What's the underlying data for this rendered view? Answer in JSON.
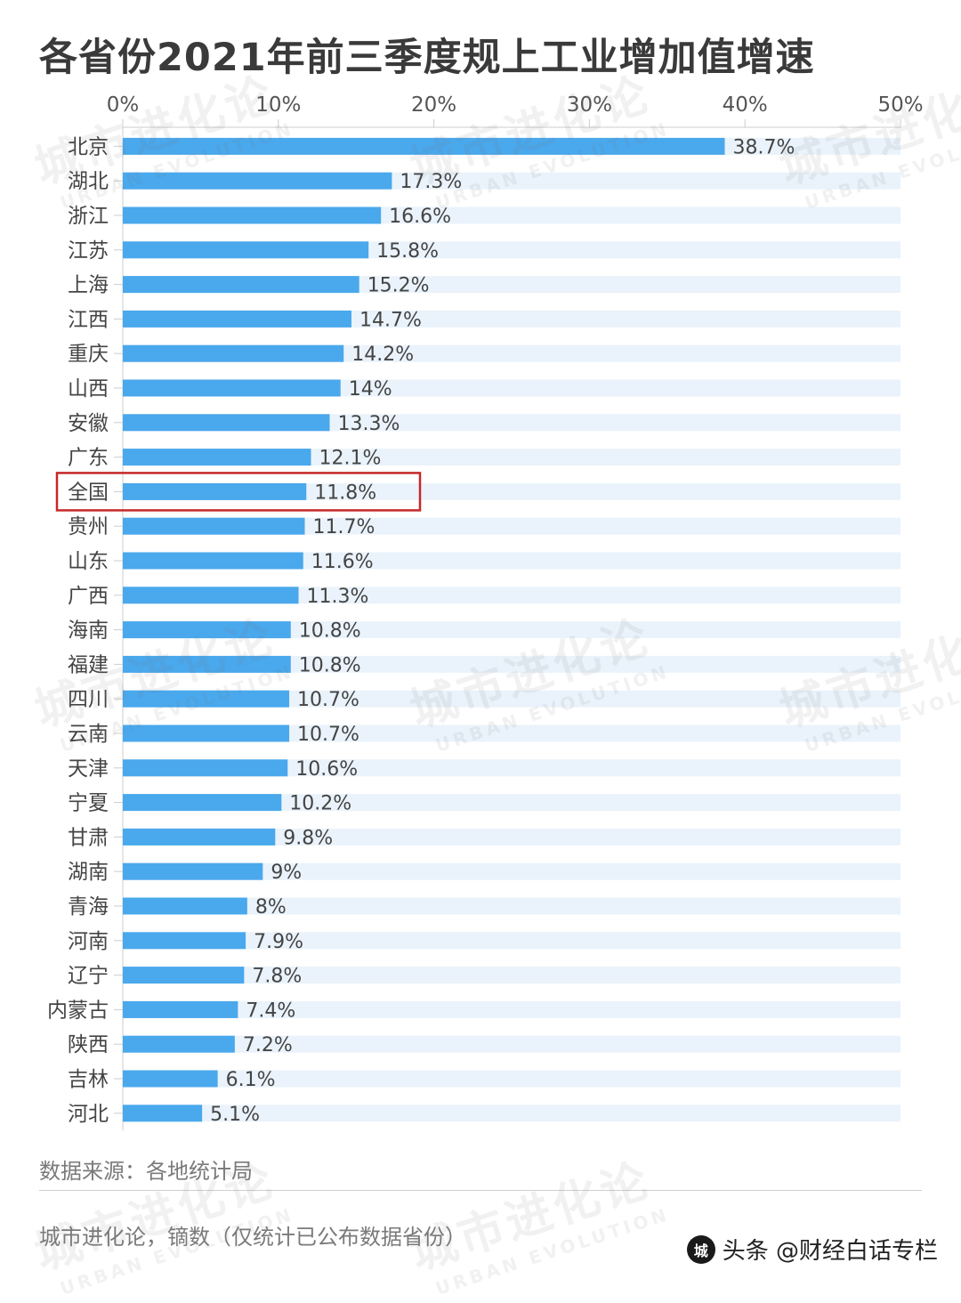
{
  "title": "各省份2021年前三季度规上工业增加值增速",
  "source": "数据来源：各地统计局",
  "credit": "城市进化论，镝数（仅统计已公布数据省份）",
  "footer": {
    "brand": "头条 @财经白话专栏"
  },
  "watermark": {
    "cn": "城市进化论",
    "en": "URBAN EVOLUTION"
  },
  "colors": {
    "bar": "#4aa8ec",
    "track": "#eaf3fb",
    "highlight": "#c62828",
    "text": "#444444",
    "axis": "#cccccc"
  },
  "chart_data": {
    "type": "bar",
    "orientation": "horizontal",
    "title": "各省份2021年前三季度规上工业增加值增速",
    "xlim": [
      0,
      50
    ],
    "xticks": [
      "0%",
      "10%",
      "20%",
      "30%",
      "40%",
      "50%"
    ],
    "highlight": "全国",
    "categories": [
      "北京",
      "湖北",
      "浙江",
      "江苏",
      "上海",
      "江西",
      "重庆",
      "山西",
      "安徽",
      "广东",
      "全国",
      "贵州",
      "山东",
      "广西",
      "海南",
      "福建",
      "四川",
      "云南",
      "天津",
      "宁夏",
      "甘肃",
      "湖南",
      "青海",
      "河南",
      "辽宁",
      "内蒙古",
      "陕西",
      "吉林",
      "河北"
    ],
    "values": [
      38.7,
      17.3,
      16.6,
      15.8,
      15.2,
      14.7,
      14.2,
      14,
      13.3,
      12.1,
      11.8,
      11.7,
      11.6,
      11.3,
      10.8,
      10.8,
      10.7,
      10.7,
      10.6,
      10.2,
      9.8,
      9,
      8,
      7.9,
      7.8,
      7.4,
      7.2,
      6.1,
      5.1
    ],
    "labels": [
      "38.7%",
      "17.3%",
      "16.6%",
      "15.8%",
      "15.2%",
      "14.7%",
      "14.2%",
      "14%",
      "13.3%",
      "12.1%",
      "11.8%",
      "11.7%",
      "11.6%",
      "11.3%",
      "10.8%",
      "10.8%",
      "10.7%",
      "10.7%",
      "10.6%",
      "10.2%",
      "9.8%",
      "9%",
      "8%",
      "7.9%",
      "7.8%",
      "7.4%",
      "7.2%",
      "6.1%",
      "5.1%"
    ]
  }
}
